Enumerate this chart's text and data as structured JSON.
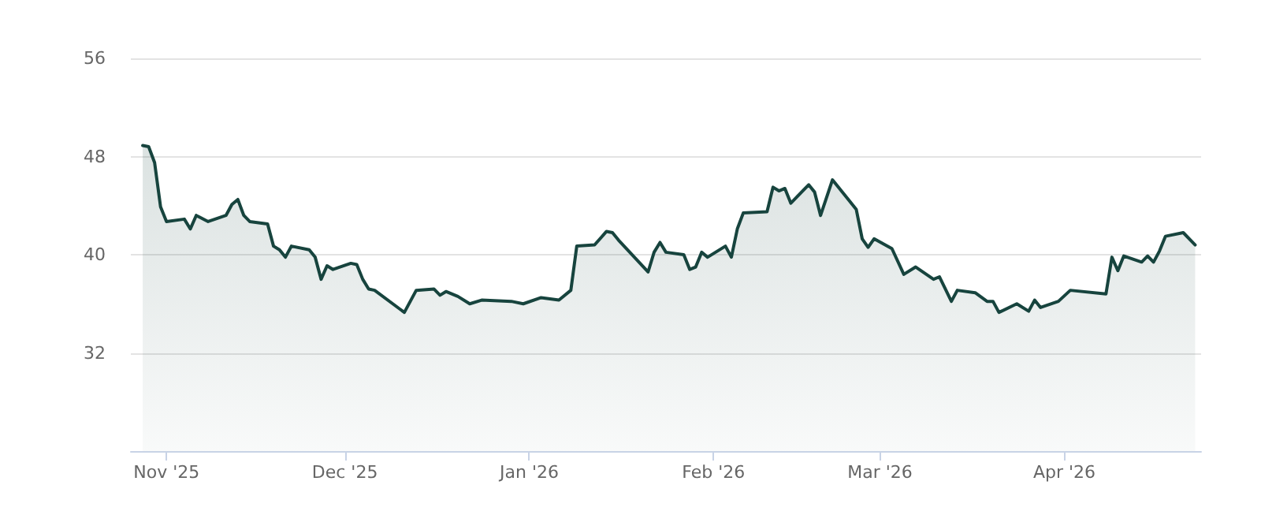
{
  "chart_data": {
    "type": "area",
    "x": [
      "2025-10-28",
      "2025-10-29",
      "2025-10-30",
      "2025-10-31",
      "2025-11-01",
      "2025-11-04",
      "2025-11-05",
      "2025-11-06",
      "2025-11-08",
      "2025-11-11",
      "2025-11-12",
      "2025-11-13",
      "2025-11-14",
      "2025-11-15",
      "2025-11-18",
      "2025-11-19",
      "2025-11-20",
      "2025-11-21",
      "2025-11-22",
      "2025-11-25",
      "2025-11-26",
      "2025-11-27",
      "2025-11-28",
      "2025-11-29",
      "2025-12-02",
      "2025-12-03",
      "2025-12-04",
      "2025-12-05",
      "2025-12-06",
      "2025-12-11",
      "2025-12-13",
      "2025-12-16",
      "2025-12-17",
      "2025-12-18",
      "2025-12-20",
      "2025-12-22",
      "2025-12-24",
      "2025-12-29",
      "2025-12-31",
      "2026-01-03",
      "2026-01-06",
      "2026-01-08",
      "2026-01-09",
      "2026-01-12",
      "2026-01-14",
      "2026-01-15",
      "2026-01-16",
      "2026-01-21",
      "2026-01-22",
      "2026-01-23",
      "2026-01-24",
      "2026-01-27",
      "2026-01-28",
      "2026-01-29",
      "2026-01-30",
      "2026-01-31",
      "2026-02-03",
      "2026-02-04",
      "2026-02-05",
      "2026-02-06",
      "2026-02-10",
      "2026-02-11",
      "2026-02-12",
      "2026-02-13",
      "2026-02-14",
      "2026-02-17",
      "2026-02-18",
      "2026-02-19",
      "2026-02-21",
      "2026-02-25",
      "2026-02-26",
      "2026-02-27",
      "2026-02-28",
      "2026-03-03",
      "2026-03-05",
      "2026-03-07",
      "2026-03-10",
      "2026-03-11",
      "2026-03-13",
      "2026-03-14",
      "2026-03-17",
      "2026-03-19",
      "2026-03-20",
      "2026-03-21",
      "2026-03-24",
      "2026-03-26",
      "2026-03-27",
      "2026-03-28",
      "2026-03-31",
      "2026-04-02",
      "2026-04-08",
      "2026-04-09",
      "2026-04-10",
      "2026-04-11",
      "2026-04-14",
      "2026-04-15",
      "2026-04-16",
      "2026-04-17",
      "2026-04-18",
      "2026-04-21",
      "2026-04-23"
    ],
    "series": [
      {
        "color": "#17443e",
        "values": [
          48.9,
          48.8,
          47.5,
          43.9,
          42.7,
          42.9,
          42.1,
          43.2,
          42.7,
          43.2,
          44.1,
          44.5,
          43.2,
          42.7,
          42.5,
          40.7,
          40.4,
          39.8,
          40.7,
          40.4,
          39.8,
          38.0,
          39.1,
          38.8,
          39.3,
          39.2,
          38.0,
          37.2,
          37.1,
          35.3,
          37.1,
          37.2,
          36.7,
          37.0,
          36.6,
          36.0,
          36.3,
          36.2,
          36.0,
          36.5,
          36.3,
          37.1,
          40.7,
          40.8,
          41.9,
          41.8,
          41.2,
          38.6,
          40.2,
          41.0,
          40.2,
          40.0,
          38.8,
          39.0,
          40.2,
          39.8,
          40.7,
          39.8,
          42.1,
          43.4,
          43.5,
          45.5,
          45.2,
          45.4,
          44.2,
          45.7,
          45.1,
          43.2,
          46.1,
          43.7,
          41.3,
          40.6,
          41.3,
          40.5,
          38.4,
          39.0,
          38.0,
          38.2,
          36.2,
          37.1,
          36.9,
          36.2,
          36.2,
          35.3,
          36.0,
          35.4,
          36.3,
          35.7,
          36.2,
          37.1,
          36.8,
          39.8,
          38.7,
          39.9,
          39.4,
          39.9,
          39.4,
          40.3,
          41.5,
          41.8,
          40.8
        ]
      }
    ],
    "xlim": [
      "2025-10-26",
      "2026-04-24"
    ],
    "xticks": [
      {
        "value": "2025-11-01",
        "label": "Nov '25"
      },
      {
        "value": "2025-12-01",
        "label": "Dec '25"
      },
      {
        "value": "2026-01-01",
        "label": "Jan '26"
      },
      {
        "value": "2026-02-01",
        "label": "Feb '26"
      },
      {
        "value": "2026-03-01",
        "label": "Mar '26"
      },
      {
        "value": "2026-04-01",
        "label": "Apr '26"
      }
    ],
    "ylim": [
      24,
      56
    ],
    "yticks": [
      32,
      40,
      48,
      56
    ],
    "grid": "y",
    "marker": "none",
    "line_style": "solid"
  }
}
